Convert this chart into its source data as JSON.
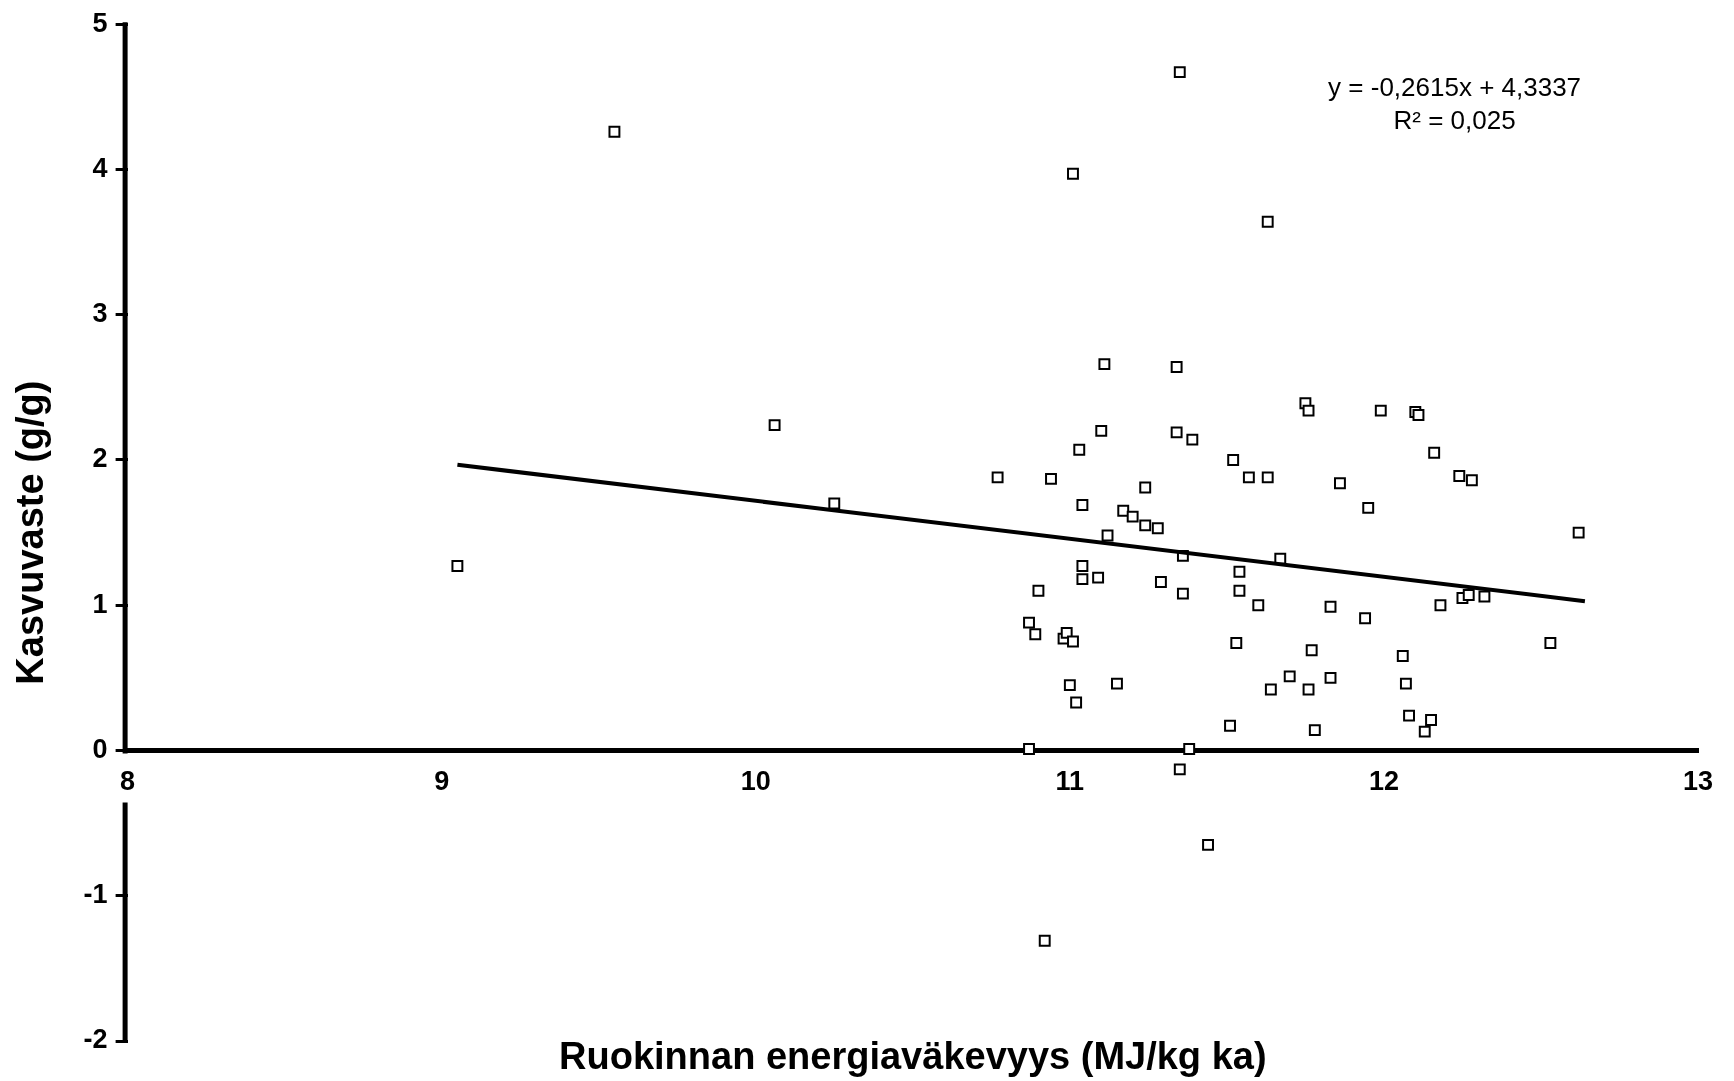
{
  "chart_data": {
    "type": "scatter",
    "xlabel": "Ruokinnan energiaväkevyys (MJ/kg ka)",
    "ylabel": "Kasvuvaste (g/g)",
    "annotations": [
      "y = -0,2615x + 4,3337",
      "R² = 0,025"
    ],
    "xlim": [
      8,
      13
    ],
    "xticks": [
      8,
      9,
      10,
      11,
      12,
      13
    ],
    "ylim": [
      -2,
      5
    ],
    "yticks": [
      -2,
      -1,
      0,
      1,
      2,
      3,
      4,
      5
    ],
    "grid": false,
    "legend": false,
    "marker": "square",
    "series": [
      {
        "type": "scatter",
        "color": "#000000",
        "x": [
          9.05,
          9.55,
          10.06,
          10.25,
          10.77,
          10.94,
          11.01,
          11.11,
          11.03,
          11.1,
          11.24,
          11.04,
          11.17,
          11.2,
          11.24,
          11.28,
          11.12,
          11.35,
          11.34,
          11.34,
          11.39,
          11.36,
          11.29,
          11.36,
          11.04,
          11.04,
          11.09,
          10.9,
          10.87,
          10.89,
          10.98,
          10.99,
          11.01,
          11.0,
          11.02,
          11.15,
          10.87,
          11.38,
          11.35,
          11.44,
          10.92,
          11.63,
          11.52,
          11.57,
          11.63,
          11.54,
          11.54,
          11.67,
          11.6,
          11.53,
          11.77,
          11.7,
          11.64,
          11.76,
          11.83,
          11.51,
          11.78,
          11.75,
          11.76,
          11.99,
          11.86,
          11.95,
          11.83,
          11.94,
          12.1,
          12.11,
          12.16,
          12.24,
          12.28,
          12.18,
          12.25,
          12.27,
          12.32,
          12.06,
          12.07,
          12.08,
          12.15,
          12.13,
          12.53,
          12.62
        ],
        "values": [
          1.27,
          4.26,
          2.24,
          1.7,
          1.88,
          1.87,
          3.97,
          2.66,
          2.07,
          2.2,
          1.81,
          1.69,
          1.65,
          1.61,
          1.55,
          1.53,
          1.48,
          4.67,
          2.64,
          2.19,
          2.14,
          1.34,
          1.16,
          1.08,
          1.27,
          1.18,
          1.19,
          1.1,
          0.88,
          0.8,
          0.77,
          0.81,
          0.75,
          0.45,
          0.33,
          0.46,
          0.01,
          0.01,
          -0.13,
          -0.65,
          -1.31,
          3.64,
          2.0,
          1.88,
          1.88,
          1.23,
          1.1,
          1.32,
          1.0,
          0.74,
          0.69,
          0.51,
          0.42,
          0.42,
          0.5,
          0.17,
          0.14,
          2.39,
          2.34,
          2.34,
          1.84,
          1.67,
          0.99,
          0.91,
          2.33,
          2.31,
          2.05,
          1.89,
          1.86,
          1.0,
          1.05,
          1.07,
          1.06,
          0.65,
          0.46,
          0.24,
          0.21,
          0.13,
          0.74,
          1.5
        ]
      },
      {
        "type": "line",
        "color": "#000000",
        "marker": "none",
        "x": [
          9.05,
          12.64
        ],
        "values": [
          1.967,
          1.028
        ]
      }
    ]
  }
}
